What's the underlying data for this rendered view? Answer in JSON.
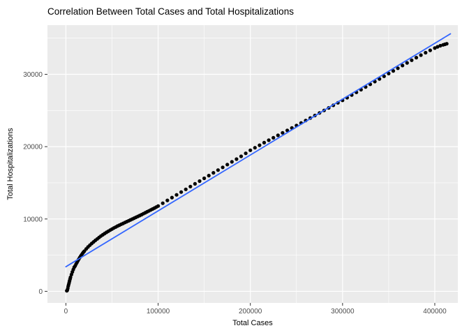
{
  "chart_data": {
    "type": "scatter",
    "title": "Correlation Between Total Cases and Total Hospitalizations",
    "xlabel": "Total Cases",
    "ylabel": "Total Hospitalizations",
    "x_ticks": [
      0,
      100000,
      200000,
      300000,
      400000
    ],
    "x_minor_ticks": [
      50000,
      150000,
      250000,
      350000
    ],
    "y_ticks": [
      0,
      10000,
      20000,
      30000
    ],
    "y_minor_ticks": [
      5000,
      15000,
      25000,
      35000
    ],
    "xlim": [
      -20000,
      425000
    ],
    "ylim": [
      -1600,
      36800
    ],
    "grid": true,
    "legend": "none",
    "colors": {
      "panel": "#EBEBEB",
      "grid_major": "#FFFFFF",
      "grid_minor": "#FFFFFF",
      "point": "#000000",
      "smooth_line": "#3366FF",
      "tick_label": "#4D4D4D",
      "tick_mark": "#333333"
    },
    "regression_line": {
      "x1": 0,
      "y1": 3400,
      "x2": 417000,
      "y2": 35600
    },
    "points": [
      [
        1000,
        80
      ],
      [
        1500,
        150
      ],
      [
        2000,
        400
      ],
      [
        2500,
        700
      ],
      [
        3000,
        950
      ],
      [
        3500,
        1200
      ],
      [
        4000,
        1450
      ],
      [
        4500,
        1700
      ],
      [
        5000,
        1930
      ],
      [
        6000,
        2320
      ],
      [
        7000,
        2680
      ],
      [
        8000,
        3010
      ],
      [
        9000,
        3320
      ],
      [
        10000,
        3500
      ],
      [
        11000,
        3760
      ],
      [
        12000,
        4000
      ],
      [
        13000,
        4230
      ],
      [
        14000,
        4450
      ],
      [
        15000,
        4660
      ],
      [
        16000,
        4860
      ],
      [
        17000,
        5050
      ],
      [
        18000,
        5230
      ],
      [
        19000,
        5400
      ],
      [
        20000,
        5560
      ],
      [
        22000,
        5860
      ],
      [
        24000,
        6130
      ],
      [
        26000,
        6380
      ],
      [
        28000,
        6610
      ],
      [
        30000,
        6830
      ],
      [
        32000,
        7040
      ],
      [
        34000,
        7250
      ],
      [
        36000,
        7450
      ],
      [
        38000,
        7640
      ],
      [
        40000,
        7820
      ],
      [
        42000,
        7990
      ],
      [
        44000,
        8150
      ],
      [
        46000,
        8310
      ],
      [
        48000,
        8460
      ],
      [
        50000,
        8610
      ],
      [
        52000,
        8750
      ],
      [
        54000,
        8890
      ],
      [
        56000,
        9020
      ],
      [
        58000,
        9150
      ],
      [
        60000,
        9270
      ],
      [
        62000,
        9390
      ],
      [
        64000,
        9510
      ],
      [
        66000,
        9630
      ],
      [
        68000,
        9750
      ],
      [
        70000,
        9870
      ],
      [
        72000,
        9990
      ],
      [
        74000,
        10110
      ],
      [
        76000,
        10230
      ],
      [
        78000,
        10350
      ],
      [
        80000,
        10470
      ],
      [
        82000,
        10600
      ],
      [
        84000,
        10730
      ],
      [
        86000,
        10860
      ],
      [
        88000,
        10990
      ],
      [
        90000,
        11120
      ],
      [
        92000,
        11250
      ],
      [
        94000,
        11380
      ],
      [
        96000,
        11510
      ],
      [
        98000,
        11650
      ],
      [
        100000,
        11790
      ],
      [
        105000,
        12180
      ],
      [
        110000,
        12570
      ],
      [
        115000,
        12960
      ],
      [
        120000,
        13340
      ],
      [
        125000,
        13720
      ],
      [
        130000,
        14100
      ],
      [
        135000,
        14480
      ],
      [
        140000,
        14860
      ],
      [
        145000,
        15240
      ],
      [
        150000,
        15620
      ],
      [
        155000,
        16000
      ],
      [
        160000,
        16380
      ],
      [
        165000,
        16760
      ],
      [
        170000,
        17140
      ],
      [
        175000,
        17520
      ],
      [
        180000,
        17900
      ],
      [
        185000,
        18280
      ],
      [
        190000,
        18660
      ],
      [
        195000,
        19080
      ],
      [
        200000,
        19500
      ],
      [
        205000,
        19850
      ],
      [
        210000,
        20200
      ],
      [
        215000,
        20550
      ],
      [
        220000,
        20890
      ],
      [
        225000,
        21230
      ],
      [
        230000,
        21570
      ],
      [
        235000,
        21910
      ],
      [
        240000,
        22250
      ],
      [
        245000,
        22590
      ],
      [
        250000,
        22930
      ],
      [
        255000,
        23270
      ],
      [
        260000,
        23610
      ],
      [
        265000,
        23960
      ],
      [
        270000,
        24310
      ],
      [
        275000,
        24660
      ],
      [
        280000,
        25010
      ],
      [
        285000,
        25360
      ],
      [
        290000,
        25710
      ],
      [
        295000,
        26060
      ],
      [
        300000,
        26400
      ],
      [
        305000,
        26770
      ],
      [
        310000,
        27140
      ],
      [
        315000,
        27510
      ],
      [
        320000,
        27880
      ],
      [
        325000,
        28250
      ],
      [
        330000,
        28620
      ],
      [
        335000,
        28990
      ],
      [
        340000,
        29360
      ],
      [
        345000,
        29730
      ],
      [
        350000,
        30100
      ],
      [
        355000,
        30470
      ],
      [
        360000,
        30840
      ],
      [
        365000,
        31210
      ],
      [
        370000,
        31580
      ],
      [
        375000,
        31950
      ],
      [
        380000,
        32300
      ],
      [
        385000,
        32650
      ],
      [
        390000,
        32990
      ],
      [
        395000,
        33320
      ],
      [
        400000,
        33630
      ],
      [
        403000,
        33800
      ],
      [
        406000,
        33950
      ],
      [
        409000,
        34070
      ],
      [
        411000,
        34150
      ],
      [
        413000,
        34220
      ]
    ]
  }
}
